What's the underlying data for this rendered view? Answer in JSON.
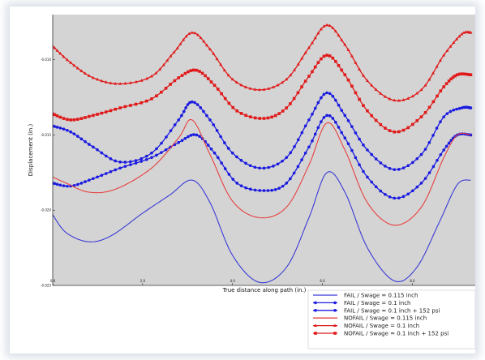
{
  "chart_data": {
    "type": "line",
    "xlabel": "True distance along path (in.)",
    "ylabel": "Displacement (in.)",
    "xlim": [
      0,
      9.4
    ],
    "ylim": [
      -0.025,
      -0.007
    ],
    "x_ticks": [
      "0.0",
      "2.0",
      "4.0",
      "6.0",
      "8.0"
    ],
    "x_tick_values": [
      0,
      2,
      4,
      6,
      8
    ],
    "y_ticks": [
      "-0.010",
      "-0.015",
      "-0.020",
      "-0.025"
    ],
    "y_tick_values": [
      -0.01,
      -0.015,
      -0.02,
      -0.025
    ],
    "grid": false,
    "legend_position": "bottom-right",
    "plot_background": "#d4d4d4",
    "series": [
      {
        "name": "FAIL / Swage = 0.115 inch",
        "color": "#3b3bd6",
        "marker": "none",
        "x": [
          0,
          0.3,
          0.8,
          1.3,
          2.0,
          2.6,
          3.1,
          3.5,
          4.0,
          4.6,
          5.2,
          5.7,
          6.1,
          6.5,
          7.0,
          7.6,
          8.1,
          8.6,
          9.0,
          9.3
        ],
        "y": [
          -0.0203,
          -0.0215,
          -0.0221,
          -0.0217,
          -0.0202,
          -0.019,
          -0.018,
          -0.0195,
          -0.023,
          -0.0248,
          -0.0238,
          -0.0205,
          -0.0175,
          -0.0188,
          -0.0225,
          -0.0247,
          -0.0238,
          -0.0208,
          -0.0183,
          -0.018
        ]
      },
      {
        "name": "FAIL / Swage = 0.1 inch",
        "color": "#1a1ae0",
        "marker": "circle",
        "x": [
          0,
          0.4,
          0.9,
          1.5,
          2.2,
          2.8,
          3.1,
          3.5,
          4.0,
          4.6,
          5.2,
          5.7,
          6.1,
          6.5,
          7.0,
          7.6,
          8.2,
          8.7,
          9.1,
          9.3
        ],
        "y": [
          -0.0144,
          -0.0148,
          -0.0158,
          -0.0168,
          -0.0162,
          -0.014,
          -0.0128,
          -0.014,
          -0.0162,
          -0.0172,
          -0.0165,
          -0.014,
          -0.0122,
          -0.0137,
          -0.016,
          -0.0173,
          -0.0163,
          -0.0138,
          -0.0132,
          -0.0132
        ]
      },
      {
        "name": "FAIL / Swage = 0.1 inch + 152 psi",
        "color": "#1a1ae0",
        "marker": "circle",
        "x": [
          0,
          0.4,
          0.9,
          1.5,
          2.2,
          2.8,
          3.2,
          3.6,
          4.1,
          4.7,
          5.2,
          5.7,
          6.1,
          6.5,
          7.0,
          7.6,
          8.2,
          8.7,
          9.0,
          9.3
        ],
        "y": [
          -0.0182,
          -0.0184,
          -0.0179,
          -0.0172,
          -0.0165,
          -0.0155,
          -0.015,
          -0.0162,
          -0.0182,
          -0.0187,
          -0.0182,
          -0.0158,
          -0.0137,
          -0.0152,
          -0.0178,
          -0.0192,
          -0.0182,
          -0.016,
          -0.015,
          -0.015
        ]
      },
      {
        "name": "NOFAIL / Swage = 0.115 inch",
        "color": "#e84040",
        "marker": "none",
        "x": [
          0,
          0.3,
          0.8,
          1.4,
          2.2,
          2.8,
          3.1,
          3.5,
          4.0,
          4.6,
          5.2,
          5.7,
          6.1,
          6.5,
          7.0,
          7.6,
          8.2,
          8.7,
          9.0,
          9.3
        ],
        "y": [
          -0.0178,
          -0.0182,
          -0.0188,
          -0.0186,
          -0.0172,
          -0.0152,
          -0.014,
          -0.0163,
          -0.0194,
          -0.0205,
          -0.0198,
          -0.017,
          -0.0142,
          -0.016,
          -0.0195,
          -0.021,
          -0.0198,
          -0.0165,
          -0.015,
          -0.015
        ]
      },
      {
        "name": "NOFAIL / Swage = 0.1 inch",
        "color": "#e01a1a",
        "marker": "triangle",
        "x": [
          0,
          0.4,
          0.9,
          1.5,
          2.2,
          2.7,
          3.1,
          3.5,
          4.0,
          4.6,
          5.2,
          5.7,
          6.1,
          6.5,
          7.0,
          7.6,
          8.2,
          8.7,
          9.1,
          9.3
        ],
        "y": [
          -0.0091,
          -0.0102,
          -0.0112,
          -0.0116,
          -0.0111,
          -0.0095,
          -0.0082,
          -0.0093,
          -0.0113,
          -0.012,
          -0.0113,
          -0.0092,
          -0.0077,
          -0.009,
          -0.0114,
          -0.0127,
          -0.012,
          -0.0097,
          -0.0083,
          -0.0082
        ]
      },
      {
        "name": "NOFAIL / Swage = 0.1 inch + 152 psi",
        "color": "#e01a1a",
        "marker": "square",
        "x": [
          0,
          0.4,
          0.9,
          1.5,
          2.2,
          2.8,
          3.2,
          3.6,
          4.1,
          4.7,
          5.2,
          5.7,
          6.1,
          6.5,
          7.0,
          7.6,
          8.2,
          8.7,
          9.0,
          9.3
        ],
        "y": [
          -0.0136,
          -0.014,
          -0.0137,
          -0.0132,
          -0.0126,
          -0.0112,
          -0.0107,
          -0.0117,
          -0.0134,
          -0.0139,
          -0.0132,
          -0.0111,
          -0.0097,
          -0.011,
          -0.0134,
          -0.0148,
          -0.0138,
          -0.0118,
          -0.011,
          -0.011
        ]
      }
    ]
  }
}
